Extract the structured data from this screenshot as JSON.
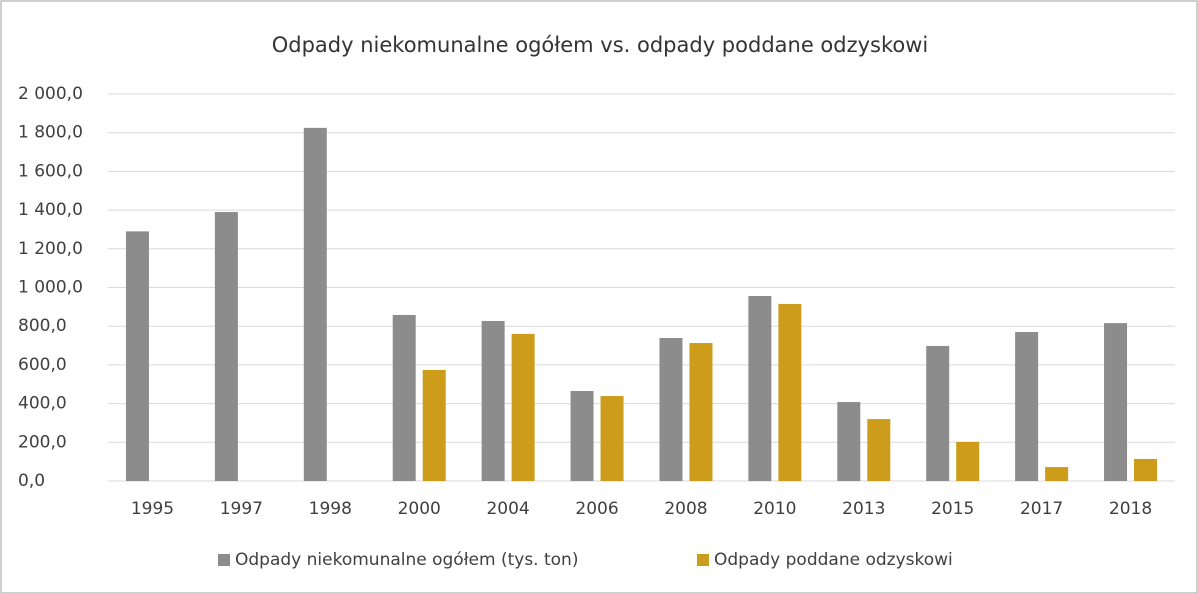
{
  "chart_data": {
    "type": "bar",
    "title": "Odpady niekomunalne ogółem vs. odpady poddane odzyskowi",
    "categories": [
      "1995",
      "1997",
      "1998",
      "2000",
      "2004",
      "2006",
      "2008",
      "2010",
      "2013",
      "2015",
      "2017",
      "2018"
    ],
    "series": [
      {
        "name": "Odpady niekomunalne ogółem (tys. ton)",
        "color": "#8c8c8c",
        "values": [
          1290,
          1390,
          1825,
          858,
          827,
          465,
          739,
          956,
          408,
          698,
          770,
          816
        ]
      },
      {
        "name": "Odpady poddane odzyskowi",
        "color": "#cc9c1a",
        "values": [
          null,
          null,
          null,
          574,
          760,
          439,
          713,
          915,
          320,
          202,
          72,
          114
        ]
      }
    ],
    "ylim": [
      0,
      2000
    ],
    "yticks": [
      {
        "value": 0,
        "label": "0,0"
      },
      {
        "value": 200,
        "label": "200,0"
      },
      {
        "value": 400,
        "label": "400,0"
      },
      {
        "value": 600,
        "label": "600,0"
      },
      {
        "value": 800,
        "label": "800,0"
      },
      {
        "value": 1000,
        "label": "1 000,0"
      },
      {
        "value": 1200,
        "label": "1 200,0"
      },
      {
        "value": 1400,
        "label": "1 400,0"
      },
      {
        "value": 1600,
        "label": "1 600,0"
      },
      {
        "value": 1800,
        "label": "1 800,0"
      },
      {
        "value": 2000,
        "label": "2 000,0"
      }
    ],
    "grid": true,
    "legend": "bottom"
  }
}
